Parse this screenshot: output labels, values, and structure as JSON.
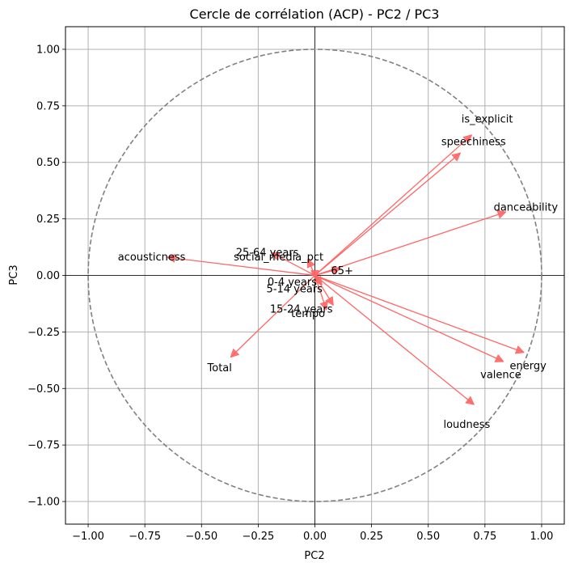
{
  "chart_data": {
    "type": "scatter",
    "title": "Cercle de corrélation (ACP) - PC2 / PC3",
    "xlabel": "PC2",
    "ylabel": "PC3",
    "xlim": [
      -1.1,
      1.1
    ],
    "ylim": [
      -1.1,
      1.1
    ],
    "xticks": [
      -1.0,
      -0.75,
      -0.5,
      -0.25,
      0.0,
      0.25,
      0.5,
      0.75,
      1.0
    ],
    "yticks": [
      -1.0,
      -0.75,
      -0.5,
      -0.25,
      0.0,
      0.25,
      0.5,
      0.75,
      1.0
    ],
    "xtick_labels": [
      "−1.00",
      "−0.75",
      "−0.50",
      "−0.25",
      "0.00",
      "0.25",
      "0.50",
      "0.75",
      "1.00"
    ],
    "ytick_labels": [
      "−1.00",
      "−0.75",
      "−0.50",
      "−0.25",
      "0.00",
      "0.25",
      "0.50",
      "0.75",
      "1.00"
    ],
    "grid": true,
    "unit_circle": true,
    "arrow_color": "#ff6666",
    "circle_color": "#808080",
    "variables": [
      {
        "name": "is_explicit",
        "x": 0.69,
        "y": 0.62
      },
      {
        "name": "speechiness",
        "x": 0.64,
        "y": 0.54
      },
      {
        "name": "danceability",
        "x": 0.84,
        "y": 0.28
      },
      {
        "name": "acousticness",
        "x": -0.65,
        "y": 0.08
      },
      {
        "name": "25-64 years",
        "x": -0.19,
        "y": 0.1
      },
      {
        "name": "social_media_pct",
        "x": -0.03,
        "y": 0.07
      },
      {
        "name": "65+",
        "x": 0.11,
        "y": 0.03
      },
      {
        "name": "0-4 years",
        "x": 0.0,
        "y": -0.01
      },
      {
        "name": "5-14 years",
        "x": 0.03,
        "y": -0.04
      },
      {
        "name": "15-24 years",
        "x": 0.08,
        "y": -0.13
      },
      {
        "name": "tempo",
        "x": 0.05,
        "y": -0.15
      },
      {
        "name": "energy",
        "x": 0.92,
        "y": -0.34
      },
      {
        "name": "valence",
        "x": 0.83,
        "y": -0.38
      },
      {
        "name": "loudness",
        "x": 0.7,
        "y": -0.57
      },
      {
        "name": "Total",
        "x": -0.37,
        "y": -0.36
      }
    ],
    "label_positions": {
      "is_explicit": [
        0.76,
        0.69
      ],
      "speechiness": [
        0.7,
        0.59
      ],
      "danceability": [
        0.93,
        0.3
      ],
      "acousticness": [
        -0.72,
        0.08
      ],
      "25-64 years": [
        -0.21,
        0.1
      ],
      "social_media_pct": [
        -0.16,
        0.08
      ],
      "65+": [
        0.12,
        0.02
      ],
      "0-4 years": [
        -0.1,
        -0.03
      ],
      "5-14 years": [
        -0.09,
        -0.06
      ],
      "15-24 years": [
        -0.06,
        -0.15
      ],
      "tempo": [
        -0.03,
        -0.17
      ],
      "energy": [
        0.94,
        -0.4
      ],
      "valence": [
        0.82,
        -0.44
      ],
      "loudness": [
        0.67,
        -0.66
      ],
      "Total": [
        -0.42,
        -0.41
      ]
    }
  }
}
